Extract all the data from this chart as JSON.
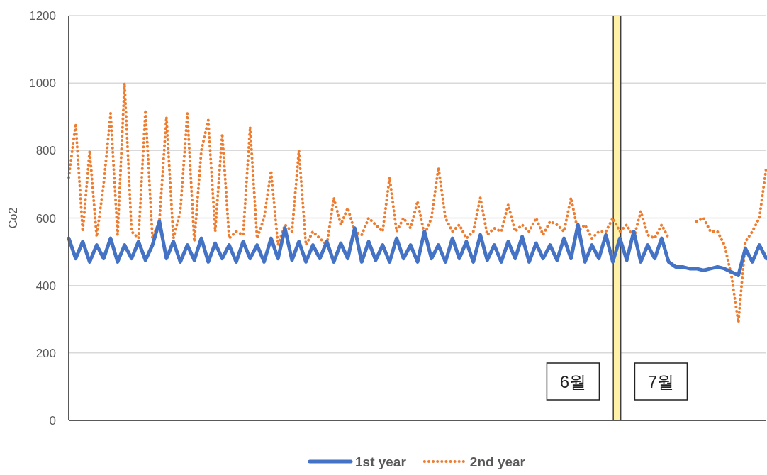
{
  "chart_data": {
    "type": "line",
    "ylabel": "Co2",
    "ylim": [
      0,
      1200
    ],
    "yticks": [
      0,
      200,
      400,
      600,
      800,
      1000,
      1200
    ],
    "tick_labels": "y",
    "grid": "y",
    "legend": "bottom",
    "categories": [
      null,
      null,
      null,
      null,
      null,
      null,
      null,
      null,
      null,
      null,
      null,
      null,
      null,
      null,
      null,
      null,
      null,
      null,
      null,
      null,
      null,
      null,
      null,
      null,
      null,
      null,
      null,
      null,
      null,
      null,
      null,
      null,
      null,
      null,
      null,
      null,
      null,
      null,
      null,
      null,
      null,
      null,
      null,
      null,
      null,
      null,
      null,
      null,
      null,
      null,
      null,
      null,
      null,
      null,
      null,
      null,
      null,
      null,
      null,
      null,
      null,
      null,
      null,
      null,
      null,
      null,
      null,
      null,
      null,
      null,
      null,
      null,
      null,
      null,
      null,
      null,
      null,
      null,
      null,
      null,
      null,
      null,
      null,
      null,
      null,
      null,
      null,
      null,
      null,
      null,
      null,
      null,
      null,
      null,
      null,
      null,
      null,
      null,
      null,
      null,
      null
    ],
    "series": [
      {
        "name": "1st year",
        "color": "#4472c4",
        "line_style": "solid",
        "values": [
          540,
          480,
          530,
          470,
          520,
          480,
          540,
          470,
          520,
          480,
          530,
          475,
          520,
          590,
          480,
          530,
          470,
          520,
          475,
          540,
          470,
          525,
          480,
          520,
          470,
          530,
          480,
          520,
          470,
          540,
          480,
          570,
          475,
          530,
          470,
          520,
          480,
          530,
          470,
          525,
          480,
          570,
          470,
          530,
          475,
          520,
          470,
          540,
          480,
          520,
          470,
          560,
          480,
          520,
          470,
          540,
          480,
          530,
          470,
          550,
          475,
          520,
          470,
          530,
          480,
          545,
          470,
          525,
          480,
          520,
          475,
          540,
          480,
          580,
          470,
          520,
          480,
          550,
          470,
          540,
          475,
          560,
          470,
          520,
          480,
          540,
          470,
          455,
          455,
          450,
          450,
          445,
          450,
          455,
          450,
          440,
          430,
          510,
          470,
          520,
          480
        ]
      },
      {
        "name": "2nd year",
        "color": "#ed7d31",
        "line_style": "dotted",
        "values": [
          720,
          880,
          560,
          800,
          545,
          700,
          910,
          550,
          1000,
          560,
          540,
          920,
          540,
          590,
          900,
          540,
          620,
          910,
          530,
          800,
          890,
          560,
          850,
          540,
          560,
          550,
          870,
          540,
          600,
          740,
          520,
          580,
          560,
          800,
          520,
          560,
          540,
          520,
          660,
          580,
          630,
          560,
          550,
          600,
          580,
          560,
          720,
          560,
          600,
          570,
          650,
          550,
          600,
          750,
          600,
          560,
          580,
          540,
          560,
          660,
          550,
          570,
          560,
          640,
          560,
          580,
          560,
          600,
          550,
          590,
          580,
          560,
          660,
          560,
          580,
          540,
          560,
          560,
          600,
          560,
          580,
          540,
          620,
          550,
          540,
          580,
          540,
          null,
          null,
          null,
          590,
          600,
          560,
          560,
          520,
          430,
          290,
          530,
          560,
          600,
          750
        ]
      }
    ],
    "annotations": [
      "6월",
      "7월"
    ]
  }
}
